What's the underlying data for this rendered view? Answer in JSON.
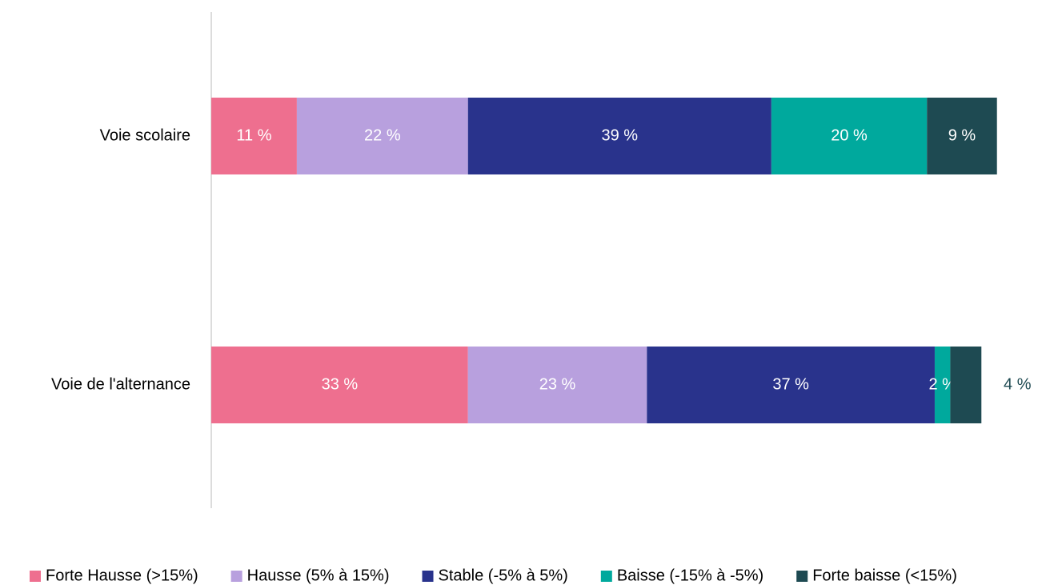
{
  "chart_data": {
    "type": "stacked-bar-horizontal",
    "categories": [
      "Voie scolaire",
      "Voie de l'alternance"
    ],
    "series": [
      {
        "name": "Forte Hausse (>15%)",
        "color": "#ee6f8f",
        "values": [
          11,
          33
        ],
        "value_labels": [
          "11 %",
          "33 %"
        ]
      },
      {
        "name": "Hausse (5% à 15%)",
        "color": "#b8a0de",
        "values": [
          22,
          23
        ],
        "value_labels": [
          "22 %",
          "23 %"
        ]
      },
      {
        "name": "Stable (-5% à 5%)",
        "color": "#29338c",
        "values": [
          39,
          37
        ],
        "value_labels": [
          "39 %",
          "37 %"
        ]
      },
      {
        "name": "Baisse (-15% à -5%)",
        "color": "#00a99d",
        "values": [
          20,
          2
        ],
        "value_labels": [
          "20 %",
          "2 %"
        ]
      },
      {
        "name": "Forte baisse (<15%)",
        "color": "#1e4a52",
        "values": [
          9,
          4
        ],
        "value_labels": [
          "9 %",
          "4 %"
        ]
      }
    ],
    "legend": "bottom"
  }
}
